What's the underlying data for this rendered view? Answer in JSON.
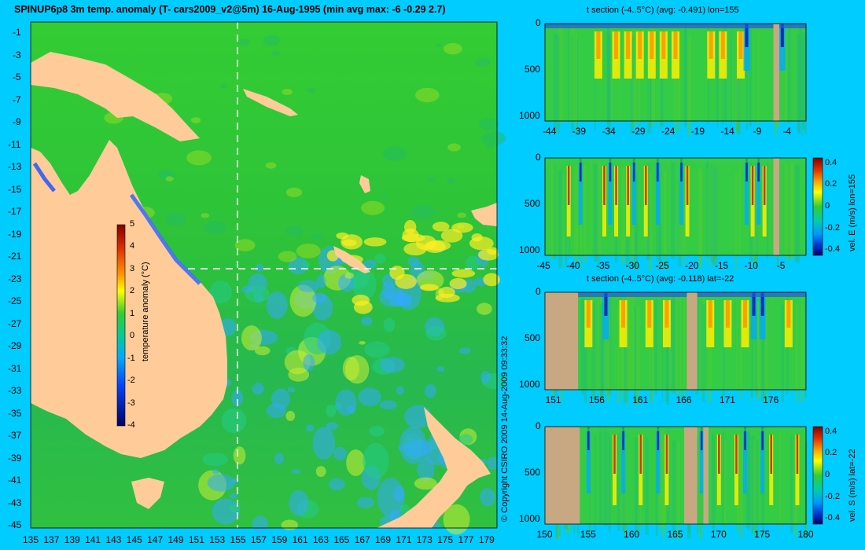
{
  "title": "SPINUP6p8 3m temp. anomaly (T- cars2009_v2@5m) 16-Aug-1995 (min avg max: -6 -0.29 2.7)",
  "copyright": "© Copyright CSIRO 2009   14-Aug-2009 09:33:32",
  "colors": {
    "background": "#00ccff",
    "land": "#ffcc99",
    "section_land": "#c8a882"
  },
  "map": {
    "colorbar_label": "temperature anomaly (°C)",
    "colorbar_ticks": [
      "5",
      "4",
      "3",
      "2",
      "1",
      "0",
      "-1",
      "-2",
      "-3",
      "-4"
    ],
    "y_ticks": [
      "-1",
      "-3",
      "-5",
      "-7",
      "-9",
      "-11",
      "-13",
      "-15",
      "-17",
      "-19",
      "-21",
      "-23",
      "-25",
      "-27",
      "-29",
      "-31",
      "-33",
      "-35",
      "-37",
      "-39",
      "-41",
      "-43",
      "-45"
    ],
    "x_ticks": [
      "135",
      "137",
      "139",
      "141",
      "143",
      "145",
      "147",
      "149",
      "151",
      "153",
      "155",
      "157",
      "159",
      "161",
      "163",
      "165",
      "167",
      "169",
      "171",
      "173",
      "175",
      "177",
      "179"
    ],
    "section_lon": 155,
    "section_lat": -22
  },
  "panels": [
    {
      "title": "t section (-4..5°C) (avg: -0.491) lon=155",
      "x_ticks": [
        "-44",
        "-39",
        "-34",
        "-29",
        "-24",
        "-19",
        "-14",
        "-9",
        "-4"
      ],
      "y_ticks": [
        "0",
        "500",
        "1000"
      ],
      "colorbar_label": "",
      "colorbar_ticks": []
    },
    {
      "title": "",
      "x_ticks": [
        "-45",
        "-40",
        "-35",
        "-30",
        "-25",
        "-20",
        "-15",
        "-10",
        "-5"
      ],
      "y_ticks": [
        "0",
        "500",
        "1000"
      ],
      "colorbar_label": "vel. E (m/s) lon=155",
      "colorbar_ticks": [
        "0.4",
        "0.2",
        "0",
        "-0.2",
        "-0.4"
      ]
    },
    {
      "title": "t section (-4..5°C) (avg: -0.118) lat=-22",
      "x_ticks": [
        "151",
        "156",
        "161",
        "166",
        "171",
        "176"
      ],
      "y_ticks": [
        "0",
        "500",
        "1000"
      ],
      "colorbar_label": "",
      "colorbar_ticks": []
    },
    {
      "title": "",
      "x_ticks": [
        "150",
        "155",
        "160",
        "165",
        "170",
        "175",
        "180"
      ],
      "y_ticks": [
        "0",
        "500",
        "1000"
      ],
      "colorbar_label": "vel. S (m/s) lat=-22",
      "colorbar_ticks": [
        "0.4",
        "0.2",
        "0",
        "-0.2",
        "-0.4"
      ]
    }
  ],
  "chart_data": [
    {
      "type": "heatmap",
      "title": "SPINUP6p8 3m temp. anomaly (T- cars2009_v2@5m) 16-Aug-1995 (min avg max: -6 -0.29 2.7)",
      "xlabel": "",
      "ylabel": "",
      "xlim": [
        135,
        180
      ],
      "ylim": [
        -45,
        0
      ],
      "colorbar": {
        "label": "temperature anomaly (°C)",
        "range": [
          -4,
          5
        ]
      },
      "stats": {
        "min": -6,
        "avg": -0.29,
        "max": 2.7
      },
      "crosshair": {
        "lon": 155,
        "lat": -22
      }
    },
    {
      "type": "heatmap",
      "title": "t section (-4..5°C) (avg: -0.491) lon=155",
      "xlim": [
        -45,
        -1
      ],
      "ylim": [
        1050,
        0
      ],
      "avg": -0.491,
      "warm_bands": [
        -36,
        -33,
        -31,
        -29,
        -27,
        -25,
        -23,
        -17,
        -15,
        -12
      ],
      "cold_bands": [
        -11,
        -5
      ],
      "land_x": [
        -6.5,
        -5.5
      ]
    },
    {
      "type": "heatmap",
      "title": "",
      "colorbar": {
        "label": "vel. E (m/s) lon=155",
        "range": [
          -0.4,
          0.4
        ]
      },
      "xlim": [
        -45,
        -1
      ],
      "ylim": [
        1050,
        0
      ],
      "pos_bands": [
        -41,
        -35,
        -33,
        -31,
        -28,
        -21,
        -10,
        -8
      ],
      "neg_bands": [
        -39,
        -34,
        -30,
        -26,
        -22,
        -11,
        -9,
        -6
      ],
      "land_x": [
        -6.5,
        -5.5
      ]
    },
    {
      "type": "heatmap",
      "title": "t section (-4..5°C) (avg: -0.118) lat=-22",
      "xlim": [
        150,
        180
      ],
      "ylim": [
        1050,
        0
      ],
      "avg": -0.118,
      "warm_bands": [
        155,
        159,
        162,
        164,
        169,
        171,
        173,
        178
      ],
      "cold_bands": [
        157,
        174,
        175
      ],
      "land_x": [
        [
          150,
          153.8
        ],
        [
          166.3,
          167.5
        ]
      ]
    },
    {
      "type": "heatmap",
      "title": "",
      "colorbar": {
        "label": "vel. S (m/s) lat=-22",
        "range": [
          -0.4,
          0.4
        ]
      },
      "xlim": [
        150,
        180
      ],
      "ylim": [
        1050,
        0
      ],
      "pos_bands": [
        153,
        158,
        161,
        164,
        170,
        172,
        176,
        179
      ],
      "neg_bands": [
        155,
        159,
        163,
        168,
        173,
        175
      ],
      "land_x": [
        [
          150,
          154
        ],
        [
          166,
          167.5
        ],
        [
          168.2,
          168.8
        ]
      ]
    }
  ]
}
